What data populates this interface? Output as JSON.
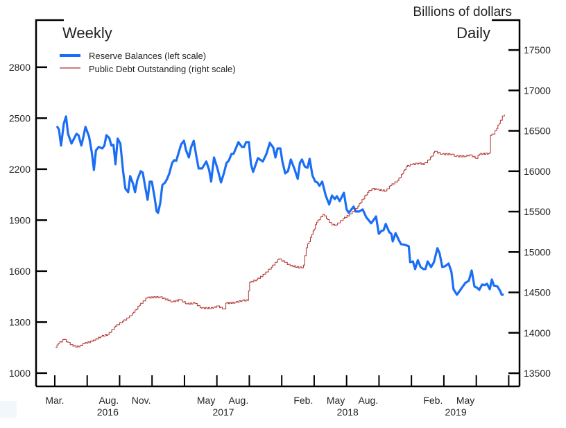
{
  "chart_data": {
    "type": "line",
    "title_left": "Weekly",
    "title_right": "Daily",
    "units_label": "Billions of dollars",
    "x_unit": "months since Jan 2016",
    "xlim": [
      0.27,
      45.0
    ],
    "x_ticks": [
      2,
      5,
      8,
      11,
      14,
      17,
      20,
      23,
      26,
      29,
      32,
      35,
      38,
      41,
      44
    ],
    "x_tick_labels": [
      {
        "label": "Mar.",
        "x": 2
      },
      {
        "label": "Aug.",
        "x": 7
      },
      {
        "label": "Nov.",
        "x": 10
      },
      {
        "label": "May",
        "x": 16
      },
      {
        "label": "Aug.",
        "x": 19
      },
      {
        "label": "Feb.",
        "x": 25
      },
      {
        "label": "May",
        "x": 28
      },
      {
        "label": "Aug.",
        "x": 31
      },
      {
        "label": "Feb.",
        "x": 37
      },
      {
        "label": "May",
        "x": 40
      }
    ],
    "year_labels": [
      {
        "label": "2016",
        "x": 6.9
      },
      {
        "label": "2017",
        "x": 17.6
      },
      {
        "label": "2018",
        "x": 29.1
      },
      {
        "label": "2019",
        "x": 39.1
      }
    ],
    "left_axis": {
      "ylim": [
        922,
        3077
      ],
      "ticks": [
        1000,
        1300,
        1600,
        1900,
        2200,
        2500,
        2800
      ]
    },
    "right_axis": {
      "ylim": [
        13337,
        17870
      ],
      "ticks": [
        13500,
        14000,
        14500,
        15000,
        15500,
        16000,
        16500,
        17000,
        17500
      ]
    },
    "legend": {
      "placement": "top-left"
    },
    "series": [
      {
        "name": "Reserve Balances (left scale)",
        "axis": "left",
        "color": "#1a6ef5",
        "points": [
          [
            2.2,
            2453
          ],
          [
            2.39,
            2433
          ],
          [
            2.58,
            2339
          ],
          [
            2.84,
            2469
          ],
          [
            3.04,
            2510
          ],
          [
            3.23,
            2408
          ],
          [
            3.55,
            2351
          ],
          [
            3.68,
            2367
          ],
          [
            4.01,
            2408
          ],
          [
            4.2,
            2400
          ],
          [
            4.46,
            2339
          ],
          [
            4.65,
            2392
          ],
          [
            4.84,
            2449
          ],
          [
            5.17,
            2392
          ],
          [
            5.43,
            2298
          ],
          [
            5.62,
            2196
          ],
          [
            5.81,
            2310
          ],
          [
            6.07,
            2331
          ],
          [
            6.4,
            2322
          ],
          [
            6.59,
            2339
          ],
          [
            6.78,
            2400
          ],
          [
            7.04,
            2384
          ],
          [
            7.24,
            2339
          ],
          [
            7.43,
            2343
          ],
          [
            7.62,
            2229
          ],
          [
            7.82,
            2380
          ],
          [
            8.07,
            2351
          ],
          [
            8.33,
            2184
          ],
          [
            8.53,
            2086
          ],
          [
            8.79,
            2065
          ],
          [
            8.98,
            2159
          ],
          [
            9.24,
            2114
          ],
          [
            9.43,
            2065
          ],
          [
            9.63,
            2135
          ],
          [
            9.95,
            2188
          ],
          [
            10.14,
            2180
          ],
          [
            10.34,
            2106
          ],
          [
            10.59,
            2020
          ],
          [
            10.79,
            2127
          ],
          [
            10.98,
            2127
          ],
          [
            11.24,
            2033
          ],
          [
            11.43,
            1951
          ],
          [
            11.56,
            1943
          ],
          [
            11.76,
            2000
          ],
          [
            11.95,
            2106
          ],
          [
            12.21,
            2122
          ],
          [
            12.4,
            2143
          ],
          [
            12.6,
            2175
          ],
          [
            12.86,
            2237
          ],
          [
            13.05,
            2253
          ],
          [
            13.24,
            2249
          ],
          [
            13.5,
            2306
          ],
          [
            13.7,
            2347
          ],
          [
            13.95,
            2367
          ],
          [
            14.15,
            2310
          ],
          [
            14.41,
            2269
          ],
          [
            14.6,
            2327
          ],
          [
            14.86,
            2367
          ],
          [
            15.12,
            2269
          ],
          [
            15.31,
            2204
          ],
          [
            15.63,
            2204
          ],
          [
            16.02,
            2245
          ],
          [
            16.28,
            2196
          ],
          [
            16.47,
            2127
          ],
          [
            16.73,
            2269
          ],
          [
            17.05,
            2204
          ],
          [
            17.38,
            2122
          ],
          [
            17.64,
            2175
          ],
          [
            17.89,
            2237
          ],
          [
            18.09,
            2249
          ],
          [
            18.35,
            2290
          ],
          [
            18.54,
            2290
          ],
          [
            18.99,
            2359
          ],
          [
            19.32,
            2331
          ],
          [
            19.51,
            2331
          ],
          [
            19.7,
            2359
          ],
          [
            19.96,
            2359
          ],
          [
            20.16,
            2229
          ],
          [
            20.35,
            2184
          ],
          [
            20.8,
            2265
          ],
          [
            21.25,
            2245
          ],
          [
            21.58,
            2290
          ],
          [
            21.9,
            2355
          ],
          [
            22.22,
            2327
          ],
          [
            22.42,
            2269
          ],
          [
            22.61,
            2322
          ],
          [
            22.87,
            2322
          ],
          [
            23.06,
            2245
          ],
          [
            23.32,
            2175
          ],
          [
            23.58,
            2188
          ],
          [
            23.84,
            2257
          ],
          [
            24.16,
            2204
          ],
          [
            24.48,
            2143
          ],
          [
            24.68,
            2237
          ],
          [
            24.87,
            2257
          ],
          [
            25.13,
            2216
          ],
          [
            25.39,
            2208
          ],
          [
            25.58,
            2261
          ],
          [
            25.84,
            2163
          ],
          [
            26.1,
            2127
          ],
          [
            26.29,
            2122
          ],
          [
            26.49,
            2102
          ],
          [
            26.74,
            2127
          ],
          [
            27.07,
            2045
          ],
          [
            27.39,
            1992
          ],
          [
            27.65,
            2045
          ],
          [
            27.91,
            2024
          ],
          [
            28.1,
            2041
          ],
          [
            28.36,
            2012
          ],
          [
            28.75,
            2061
          ],
          [
            29.0,
            1963
          ],
          [
            29.2,
            1943
          ],
          [
            29.65,
            1980
          ],
          [
            29.84,
            1951
          ],
          [
            30.17,
            1951
          ],
          [
            30.49,
            1963
          ],
          [
            30.81,
            1918
          ],
          [
            31.27,
            1882
          ],
          [
            31.46,
            1898
          ],
          [
            31.72,
            1922
          ],
          [
            31.98,
            1820
          ],
          [
            32.23,
            1837
          ],
          [
            32.43,
            1841
          ],
          [
            32.62,
            1878
          ],
          [
            32.95,
            1829
          ],
          [
            33.14,
            1820
          ],
          [
            33.27,
            1775
          ],
          [
            33.53,
            1824
          ],
          [
            33.85,
            1780
          ],
          [
            34.04,
            1759
          ],
          [
            34.37,
            1755
          ],
          [
            34.75,
            1747
          ],
          [
            34.88,
            1653
          ],
          [
            35.14,
            1657
          ],
          [
            35.34,
            1612
          ],
          [
            35.59,
            1665
          ],
          [
            35.85,
            1624
          ],
          [
            36.11,
            1612
          ],
          [
            36.3,
            1612
          ],
          [
            36.5,
            1657
          ],
          [
            36.82,
            1624
          ],
          [
            37.08,
            1653
          ],
          [
            37.4,
            1735
          ],
          [
            37.6,
            1706
          ],
          [
            37.86,
            1624
          ],
          [
            38.11,
            1629
          ],
          [
            38.44,
            1645
          ],
          [
            38.7,
            1596
          ],
          [
            38.89,
            1494
          ],
          [
            39.21,
            1461
          ],
          [
            39.66,
            1502
          ],
          [
            39.99,
            1531
          ],
          [
            40.31,
            1543
          ],
          [
            40.57,
            1604
          ],
          [
            40.83,
            1510
          ],
          [
            41.08,
            1502
          ],
          [
            41.28,
            1490
          ],
          [
            41.54,
            1522
          ],
          [
            41.8,
            1518
          ],
          [
            41.99,
            1526
          ],
          [
            42.25,
            1494
          ],
          [
            42.44,
            1551
          ],
          [
            42.64,
            1514
          ],
          [
            42.96,
            1510
          ],
          [
            43.22,
            1482
          ],
          [
            43.35,
            1461
          ],
          [
            43.54,
            1461
          ]
        ]
      },
      {
        "name": "Public Debt Outstanding (right scale)",
        "axis": "right",
        "color": "#b0302c",
        "points": [
          [
            2.07,
            13817
          ],
          [
            2.33,
            13869
          ],
          [
            2.84,
            13920
          ],
          [
            3.17,
            13886
          ],
          [
            3.68,
            13835
          ],
          [
            4.2,
            13826
          ],
          [
            4.72,
            13869
          ],
          [
            5.43,
            13895
          ],
          [
            6.27,
            13955
          ],
          [
            6.91,
            13980
          ],
          [
            7.62,
            14083
          ],
          [
            8.27,
            14143
          ],
          [
            8.79,
            14186
          ],
          [
            9.3,
            14255
          ],
          [
            9.82,
            14341
          ],
          [
            10.53,
            14435
          ],
          [
            11.69,
            14444
          ],
          [
            12.86,
            14384
          ],
          [
            13.57,
            14409
          ],
          [
            14.21,
            14358
          ],
          [
            14.92,
            14367
          ],
          [
            15.57,
            14306
          ],
          [
            16.6,
            14306
          ],
          [
            16.99,
            14332
          ],
          [
            17.64,
            14298
          ],
          [
            17.83,
            14367
          ],
          [
            18.67,
            14375
          ],
          [
            19.32,
            14401
          ],
          [
            19.83,
            14401
          ],
          [
            20.03,
            14624
          ],
          [
            20.67,
            14658
          ],
          [
            21.38,
            14727
          ],
          [
            22.03,
            14813
          ],
          [
            22.74,
            14916
          ],
          [
            23.26,
            14873
          ],
          [
            23.77,
            14830
          ],
          [
            24.81,
            14804
          ],
          [
            25.0,
            14838
          ],
          [
            25.26,
            15053
          ],
          [
            25.78,
            15216
          ],
          [
            26.23,
            15370
          ],
          [
            26.81,
            15465
          ],
          [
            27.13,
            15413
          ],
          [
            27.65,
            15336
          ],
          [
            28.04,
            15336
          ],
          [
            28.68,
            15413
          ],
          [
            29.39,
            15473
          ],
          [
            30.04,
            15568
          ],
          [
            30.94,
            15739
          ],
          [
            31.33,
            15782
          ],
          [
            31.78,
            15774
          ],
          [
            32.62,
            15756
          ],
          [
            33.07,
            15825
          ],
          [
            33.72,
            15885
          ],
          [
            34.17,
            15971
          ],
          [
            34.5,
            16057
          ],
          [
            35.01,
            16083
          ],
          [
            35.66,
            16100
          ],
          [
            36.11,
            16083
          ],
          [
            36.63,
            16143
          ],
          [
            37.14,
            16246
          ],
          [
            37.79,
            16211
          ],
          [
            38.7,
            16211
          ],
          [
            39.08,
            16185
          ],
          [
            39.99,
            16185
          ],
          [
            40.37,
            16203
          ],
          [
            41.02,
            16160
          ],
          [
            41.28,
            16211
          ],
          [
            42.12,
            16220
          ],
          [
            42.25,
            16228
          ],
          [
            42.31,
            16443
          ],
          [
            42.57,
            16460
          ],
          [
            42.89,
            16529
          ],
          [
            43.22,
            16632
          ],
          [
            43.41,
            16683
          ],
          [
            43.6,
            16700
          ]
        ]
      }
    ]
  }
}
